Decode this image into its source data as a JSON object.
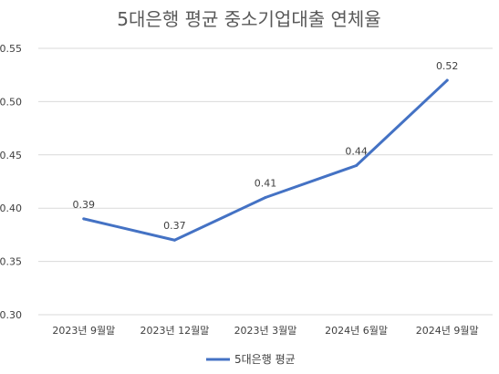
{
  "chart_data": {
    "type": "line",
    "title": "5대은행 평균 중소기업대출 연체율",
    "categories": [
      "2023년 9월말",
      "2023년 12월말",
      "2023년 3월말",
      "2024년 6월말",
      "2024년 9월말"
    ],
    "series": [
      {
        "name": "5대은행 평균",
        "values": [
          0.39,
          0.37,
          0.41,
          0.44,
          0.52
        ],
        "color": "#4472c4"
      }
    ],
    "data_labels": [
      "0.39",
      "0.37",
      "0.41",
      "0.44",
      "0.52"
    ],
    "yticks": [
      "0.30",
      "0.35",
      "0.40",
      "0.45",
      "0.50",
      "0.55"
    ],
    "ylim": [
      0.3,
      0.55
    ],
    "grid": true,
    "legend_position": "bottom"
  }
}
